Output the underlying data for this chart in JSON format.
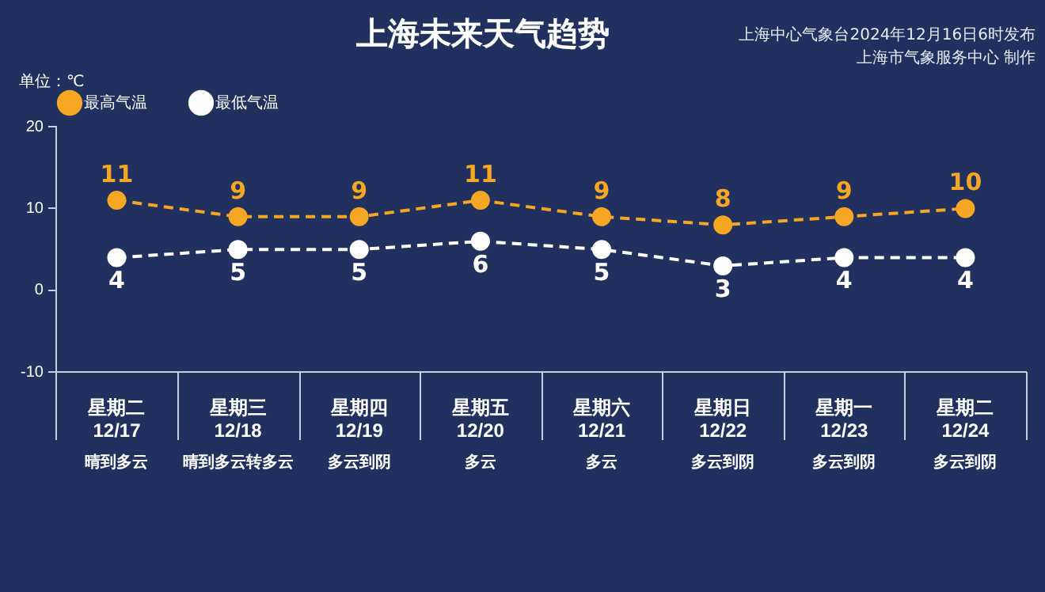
{
  "chart_data": {
    "type": "line",
    "title": "上海未来天气趋势",
    "subtitle": "上海中心气象台2024年12月16日6时发布",
    "ylabel": "单位：℃",
    "categories": [
      "星期二\n12/17",
      "星期三\n12/18",
      "星期四\n12/19",
      "星期五\n12/20",
      "星期六\n12/21",
      "星期日\n12/22",
      "星期一\n12/23",
      "星期二\n12/24"
    ],
    "series": [
      {
        "name": "最高气温",
        "color": "#f5a623",
        "values": [
          11,
          9,
          9,
          11,
          9,
          8,
          9,
          10
        ]
      },
      {
        "name": "最低气温",
        "color": "#ffffff",
        "values": [
          4,
          5,
          5,
          6,
          5,
          3,
          4,
          4
        ]
      }
    ],
    "ylim": [
      -10,
      20
    ],
    "yticks": [
      -10,
      0,
      10,
      20
    ],
    "grid": false,
    "legend": "top left",
    "marker": "circle",
    "line_style": "dashed",
    "data_labels": true,
    "annotations": [
      "晴到多云",
      "晴到多云转多云",
      "多云到阴",
      "多云",
      "多云",
      "多云到阴",
      "多云到阴",
      "多云到阴",
      "上海市气象服务中心 制作"
    ]
  }
}
